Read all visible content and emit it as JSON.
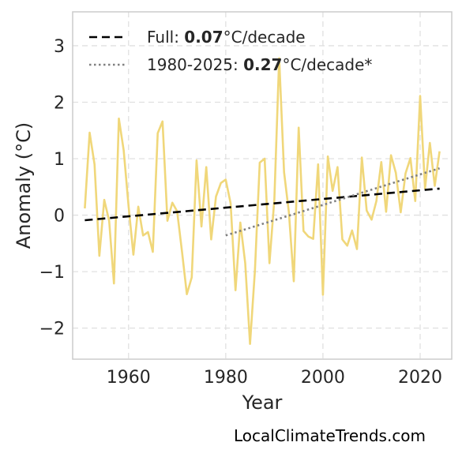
{
  "watermark": "LocalClimateTrends.com",
  "chart_data": {
    "type": "line",
    "title": "",
    "xlabel": "Year",
    "ylabel": "Anomaly (°C)",
    "xlim": [
      1948.5,
      2026.5
    ],
    "ylim": [
      -2.55,
      3.6
    ],
    "xticks": [
      1960,
      1980,
      2000,
      2020
    ],
    "yticks": [
      -2,
      -1,
      0,
      1,
      2,
      3
    ],
    "ytick_labels": [
      "−2",
      "−1",
      "0",
      "1",
      "2",
      "3"
    ],
    "grid": true,
    "legend_position": "top-left",
    "series": [
      {
        "name": "",
        "color": "#f0d77a",
        "style": "solid",
        "x": [
          1951,
          1952,
          1953,
          1954,
          1955,
          1956,
          1957,
          1958,
          1959,
          1960,
          1961,
          1962,
          1963,
          1964,
          1965,
          1966,
          1967,
          1968,
          1969,
          1970,
          1971,
          1972,
          1973,
          1974,
          1975,
          1976,
          1977,
          1978,
          1979,
          1980,
          1981,
          1982,
          1983,
          1984,
          1985,
          1986,
          1987,
          1988,
          1989,
          1990,
          1991,
          1992,
          1993,
          1994,
          1995,
          1996,
          1997,
          1998,
          1999,
          2000,
          2001,
          2002,
          2003,
          2004,
          2005,
          2006,
          2007,
          2008,
          2009,
          2010,
          2011,
          2012,
          2013,
          2014,
          2015,
          2016,
          2017,
          2018,
          2019,
          2020,
          2021,
          2022,
          2023,
          2024
        ],
        "y": [
          0.12,
          1.46,
          0.9,
          -0.72,
          0.27,
          -0.1,
          -1.21,
          1.71,
          1.15,
          0.16,
          -0.7,
          0.15,
          -0.36,
          -0.3,
          -0.65,
          1.45,
          1.66,
          -0.1,
          0.22,
          0.07,
          -0.65,
          -1.4,
          -1.1,
          0.97,
          -0.2,
          0.85,
          -0.43,
          0.33,
          0.57,
          0.63,
          0.21,
          -1.33,
          -0.13,
          -0.85,
          -2.28,
          -0.98,
          0.93,
          1.0,
          -0.85,
          0.28,
          2.78,
          0.76,
          0.05,
          -1.17,
          1.55,
          -0.28,
          -0.38,
          -0.42,
          0.9,
          -1.41,
          1.04,
          0.43,
          0.85,
          -0.43,
          -0.54,
          -0.27,
          -0.6,
          1.02,
          0.08,
          -0.08,
          0.25,
          0.94,
          0.06,
          1.06,
          0.75,
          0.05,
          0.74,
          1.01,
          0.25,
          2.11,
          0.47,
          1.28,
          0.52,
          1.13
        ]
      },
      {
        "name": "Full: 0.07°C/decade",
        "color": "#000000",
        "style": "dashed",
        "x": [
          1951,
          2024
        ],
        "y": [
          -0.09,
          0.47
        ]
      },
      {
        "name": "1980-2025: 0.27°C/decade*",
        "color": "#808080",
        "style": "dotted",
        "x": [
          1980,
          2024
        ],
        "y": [
          -0.36,
          0.83
        ]
      }
    ],
    "legend": [
      {
        "series": 1,
        "prefix": "Full: ",
        "bold": "0.07",
        "suffix": "°C/decade"
      },
      {
        "series": 2,
        "prefix": "1980-2025: ",
        "bold": "0.27",
        "suffix": "°C/decade*"
      }
    ]
  }
}
